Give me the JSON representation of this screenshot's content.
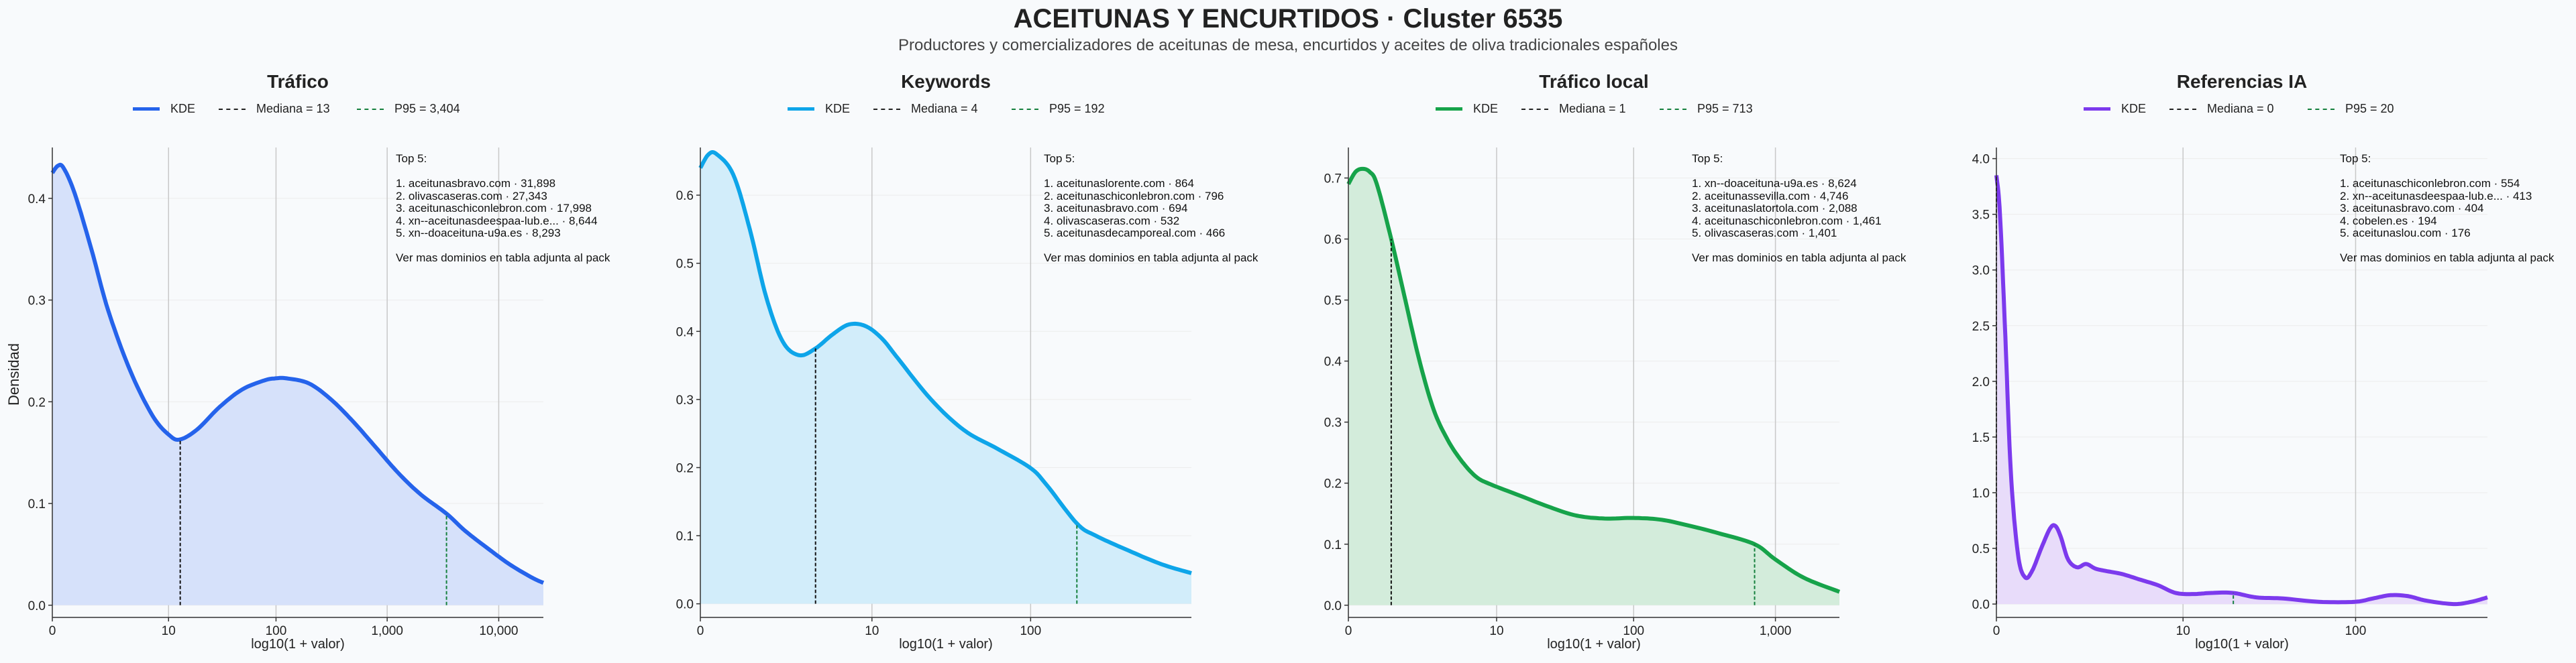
{
  "title": "ACEITUNAS Y ENCURTIDOS · Cluster 6535",
  "subtitle": "Productores y comercializadores de aceitunas de mesa, encurtidos y aceites de oliva tradicionales españoles",
  "y_axis_label": "Densidad",
  "x_axis_label": "log10(1 + valor)",
  "annotation_heading": "Top 5:",
  "annotation_footer": "Ver mas dominios en tabla adjunta al pack",
  "chart_data": [
    {
      "type": "area",
      "title": "Tráfico",
      "color": "#2563eb",
      "fill": "#d6e1fa",
      "xlabel": "log10(1 + valor)",
      "ylabel": "Densidad",
      "xlim": [
        0,
        4.4
      ],
      "ylim": [
        -0.012,
        0.45
      ],
      "x_ticks": [
        0,
        1.0414,
        2.0043,
        3.0004,
        4.0
      ],
      "x_tick_labels": [
        "0",
        "10",
        "100",
        "1,000",
        "10,000"
      ],
      "y_ticks": [
        0.0,
        0.1,
        0.2,
        0.3,
        0.4
      ],
      "y_tick_labels": [
        "0.0",
        "0.1",
        "0.2",
        "0.3",
        "0.4"
      ],
      "legend": [
        "KDE",
        "Mediana = 13",
        "P95 = 3,404"
      ],
      "median": {
        "x": 1.146,
        "label": "Mediana = 13"
      },
      "p95": {
        "x": 3.532,
        "label": "P95 = 3,404"
      },
      "series": [
        {
          "name": "KDE",
          "x": [
            0,
            0.05,
            0.1,
            0.2,
            0.35,
            0.5,
            0.7,
            0.9,
            1.05,
            1.146,
            1.3,
            1.5,
            1.7,
            1.9,
            2.0,
            2.1,
            2.3,
            2.5,
            2.7,
            2.9,
            3.1,
            3.3,
            3.532,
            3.7,
            3.9,
            4.1,
            4.3,
            4.4
          ],
          "values": [
            0.425,
            0.432,
            0.43,
            0.405,
            0.35,
            0.29,
            0.23,
            0.186,
            0.167,
            0.163,
            0.173,
            0.195,
            0.212,
            0.221,
            0.223,
            0.223,
            0.218,
            0.202,
            0.18,
            0.155,
            0.13,
            0.109,
            0.09,
            0.073,
            0.056,
            0.04,
            0.027,
            0.022
          ]
        }
      ],
      "top5": [
        "1. aceitunasbravo.com · 31,898",
        "2. olivascaseras.com · 27,343",
        "3. aceitunaschiconlebron.com · 17,998",
        "4. xn--aceitunasdeespaa-lub.e... · 8,644",
        "5. xn--doaceituna-u9a.es · 8,293"
      ]
    },
    {
      "type": "area",
      "title": "Keywords",
      "color": "#0ea5e9",
      "fill": "#d2edfa",
      "xlabel": "log10(1 + valor)",
      "ylabel": "",
      "xlim": [
        0,
        2.98
      ],
      "ylim": [
        -0.02,
        0.67
      ],
      "x_ticks": [
        0,
        1.0414,
        2.0043
      ],
      "x_tick_labels": [
        "0",
        "10",
        "100"
      ],
      "y_ticks": [
        0.0,
        0.1,
        0.2,
        0.3,
        0.4,
        0.5,
        0.6
      ],
      "y_tick_labels": [
        "0.0",
        "0.1",
        "0.2",
        "0.3",
        "0.4",
        "0.5",
        "0.6"
      ],
      "legend": [
        "KDE",
        "Mediana = 4",
        "P95 = 192"
      ],
      "median": {
        "x": 0.699,
        "label": "Mediana = 4"
      },
      "p95": {
        "x": 2.285,
        "label": "P95 = 192"
      },
      "series": [
        {
          "name": "KDE",
          "x": [
            0,
            0.05,
            0.1,
            0.2,
            0.3,
            0.4,
            0.5,
            0.6,
            0.699,
            0.8,
            0.9,
            1.0,
            1.1,
            1.2,
            1.4,
            1.6,
            1.8,
            2.0,
            2.1,
            2.285,
            2.4,
            2.6,
            2.8,
            2.98
          ],
          "values": [
            0.64,
            0.66,
            0.66,
            0.63,
            0.55,
            0.45,
            0.385,
            0.365,
            0.375,
            0.395,
            0.41,
            0.408,
            0.39,
            0.36,
            0.3,
            0.255,
            0.228,
            0.2,
            0.175,
            0.118,
            0.1,
            0.078,
            0.058,
            0.045
          ]
        }
      ],
      "top5": [
        "1. aceitunaslorente.com · 864",
        "2. aceitunaschiconlebron.com · 796",
        "3. aceitunasbravo.com · 694",
        "4. olivascaseras.com · 532",
        "5. aceitunasdecamporeal.com · 466"
      ]
    },
    {
      "type": "area",
      "title": "Tráfico local",
      "color": "#16a34a",
      "fill": "#d3ecdb",
      "xlabel": "log10(1 + valor)",
      "ylabel": "",
      "xlim": [
        0,
        3.45
      ],
      "ylim": [
        -0.02,
        0.75
      ],
      "x_ticks": [
        0,
        1.0414,
        2.0043,
        3.0004
      ],
      "x_tick_labels": [
        "0",
        "10",
        "100",
        "1,000"
      ],
      "y_ticks": [
        0.0,
        0.1,
        0.2,
        0.3,
        0.4,
        0.5,
        0.6,
        0.7
      ],
      "y_tick_labels": [
        "0.0",
        "0.1",
        "0.2",
        "0.3",
        "0.4",
        "0.5",
        "0.6",
        "0.7"
      ],
      "legend": [
        "KDE",
        "Mediana = 1",
        "P95 = 713"
      ],
      "median": {
        "x": 0.301,
        "label": "Mediana = 1"
      },
      "p95": {
        "x": 2.854,
        "label": "P95 = 713"
      },
      "series": [
        {
          "name": "KDE",
          "x": [
            0,
            0.05,
            0.1,
            0.15,
            0.2,
            0.301,
            0.4,
            0.5,
            0.6,
            0.7,
            0.8,
            0.9,
            1.0,
            1.2,
            1.4,
            1.6,
            1.8,
            2.0,
            2.2,
            2.4,
            2.6,
            2.854,
            3.0,
            3.2,
            3.45
          ],
          "values": [
            0.69,
            0.71,
            0.715,
            0.71,
            0.69,
            0.6,
            0.5,
            0.4,
            0.32,
            0.27,
            0.235,
            0.21,
            0.198,
            0.18,
            0.162,
            0.147,
            0.142,
            0.143,
            0.14,
            0.13,
            0.118,
            0.1,
            0.075,
            0.045,
            0.022
          ]
        }
      ],
      "top5": [
        "1. xn--doaceituna-u9a.es · 8,624",
        "2. aceitunassevilla.com · 4,746",
        "3. aceitunaslatortola.com · 2,088",
        "4. aceitunaschiconlebron.com · 1,461",
        "5. olivascaseras.com · 1,401"
      ]
    },
    {
      "type": "area",
      "title": "Referencias IA",
      "color": "#7c3aed",
      "fill": "#e8dcfa",
      "xlabel": "log10(1 + valor)",
      "ylabel": "",
      "xlim": [
        0,
        2.74
      ],
      "ylim": [
        -0.12,
        4.1
      ],
      "x_ticks": [
        0,
        1.0414,
        2.0043
      ],
      "x_tick_labels": [
        "0",
        "10",
        "100"
      ],
      "y_ticks": [
        0.0,
        0.5,
        1.0,
        1.5,
        2.0,
        2.5,
        3.0,
        3.5,
        4.0
      ],
      "y_tick_labels": [
        "0.0",
        "0.5",
        "1.0",
        "1.5",
        "2.0",
        "2.5",
        "3.0",
        "3.5",
        "4.0"
      ],
      "legend": [
        "KDE",
        "Mediana = 0",
        "P95 = 20"
      ],
      "median": {
        "x": 0.0,
        "label": "Mediana = 0"
      },
      "p95": {
        "x": 1.322,
        "label": "P95 = 20"
      },
      "series": [
        {
          "name": "KDE",
          "x": [
            0,
            0.02,
            0.05,
            0.08,
            0.12,
            0.16,
            0.2,
            0.25,
            0.3,
            0.33,
            0.36,
            0.4,
            0.45,
            0.5,
            0.55,
            0.6,
            0.7,
            0.8,
            0.9,
            1.0,
            1.1,
            1.2,
            1.32,
            1.45,
            1.6,
            1.8,
            2.0,
            2.1,
            2.2,
            2.3,
            2.4,
            2.55,
            2.65,
            2.74
          ],
          "values": [
            3.85,
            3.5,
            2.4,
            1.2,
            0.45,
            0.24,
            0.3,
            0.5,
            0.68,
            0.7,
            0.6,
            0.4,
            0.33,
            0.36,
            0.32,
            0.3,
            0.27,
            0.22,
            0.17,
            0.1,
            0.09,
            0.1,
            0.1,
            0.06,
            0.05,
            0.02,
            0.02,
            0.05,
            0.08,
            0.07,
            0.03,
            0.0,
            0.02,
            0.06
          ]
        }
      ],
      "top5": [
        "1. aceitunaschiconlebron.com · 554",
        "2. xn--aceitunasdeespaa-lub.e... · 413",
        "3. aceitunasbravo.com · 404",
        "4. cobelen.es · 194",
        "5. aceitunaslou.com · 176"
      ]
    }
  ]
}
